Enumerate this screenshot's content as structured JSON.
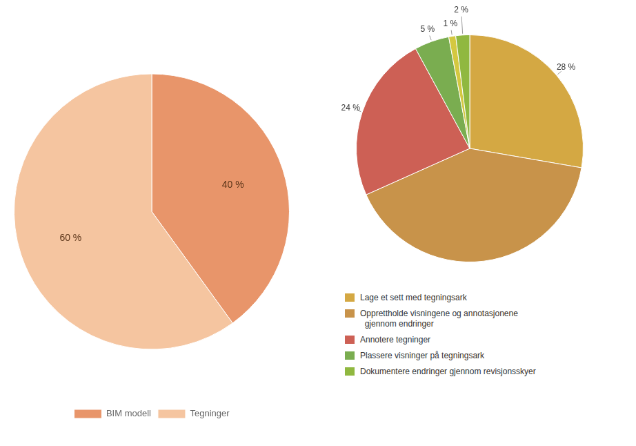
{
  "chart_data": [
    {
      "type": "pie",
      "categories": [
        "BIM modell",
        "Tegninger"
      ],
      "values": [
        40,
        60
      ],
      "colors": [
        "#E8956A",
        "#F5C5A0"
      ],
      "value_labels": [
        "40 %",
        "60 %"
      ],
      "data_labels": true,
      "legend": "bottom"
    },
    {
      "type": "pie",
      "categories": [
        "Lage et sett med tegningsark",
        "Opprettholde visningene og annotasjonene\n  gjennom endringer",
        "Annotere tegninger",
        "Plassere visninger på tegningsark",
        null,
        "Dokumentere endringer gjennom revisjonsskyer"
      ],
      "values": [
        28,
        41,
        24,
        5,
        1,
        2
      ],
      "colors": [
        "#D4A843",
        "#C8934A",
        "#CD6055",
        "#7AAD50",
        "#D4C840",
        "#90B840"
      ],
      "value_labels": [
        "28 %",
        null,
        "24 %",
        "5 %",
        "1 %",
        "2 %"
      ],
      "data_labels": true,
      "legend": "bottom"
    }
  ]
}
